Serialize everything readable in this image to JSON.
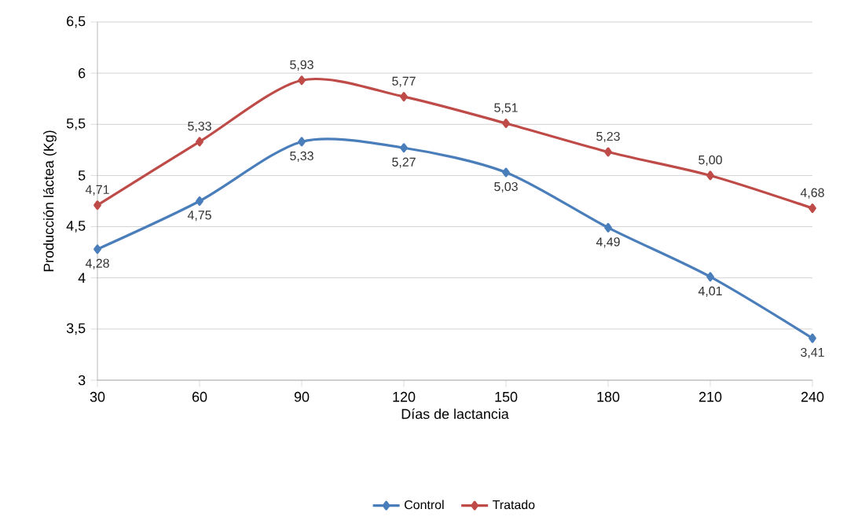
{
  "chart_data": {
    "type": "line",
    "xlabel": "Días de lactancia",
    "ylabel": "Producción láctea (Kg)",
    "x": [
      30,
      60,
      90,
      120,
      150,
      180,
      210,
      240
    ],
    "series": [
      {
        "name": "Control",
        "color": "#4a7ebb",
        "values": [
          4.28,
          4.75,
          5.33,
          5.27,
          5.03,
          4.49,
          4.01,
          3.41
        ],
        "value_labels": [
          "4,28",
          "4,75",
          "5,33",
          "5,27",
          "5,03",
          "4,49",
          "4,01",
          "3,41"
        ]
      },
      {
        "name": "Tratado",
        "color": "#be4b48",
        "values": [
          4.71,
          5.33,
          5.93,
          5.77,
          5.51,
          5.23,
          5.0,
          4.68
        ],
        "value_labels": [
          "4,71",
          "5,33",
          "5,93",
          "5,77",
          "5,51",
          "5,23",
          "5,00",
          "4,68"
        ]
      }
    ],
    "xlim": [
      30,
      240
    ],
    "xticks": [
      30,
      60,
      90,
      120,
      150,
      180,
      210,
      240
    ],
    "ylim": [
      3,
      6.5
    ],
    "yticks": [
      3,
      {
        "value": 3.5,
        "label": "3,5"
      },
      4,
      {
        "value": 4.5,
        "label": "4,5"
      },
      5,
      {
        "value": 5.5,
        "label": "5,5"
      },
      6,
      {
        "value": 6.5,
        "label": "6,5"
      }
    ],
    "grid": "y",
    "legend": "bottom",
    "marker": "diamond",
    "line_style": "solid"
  }
}
